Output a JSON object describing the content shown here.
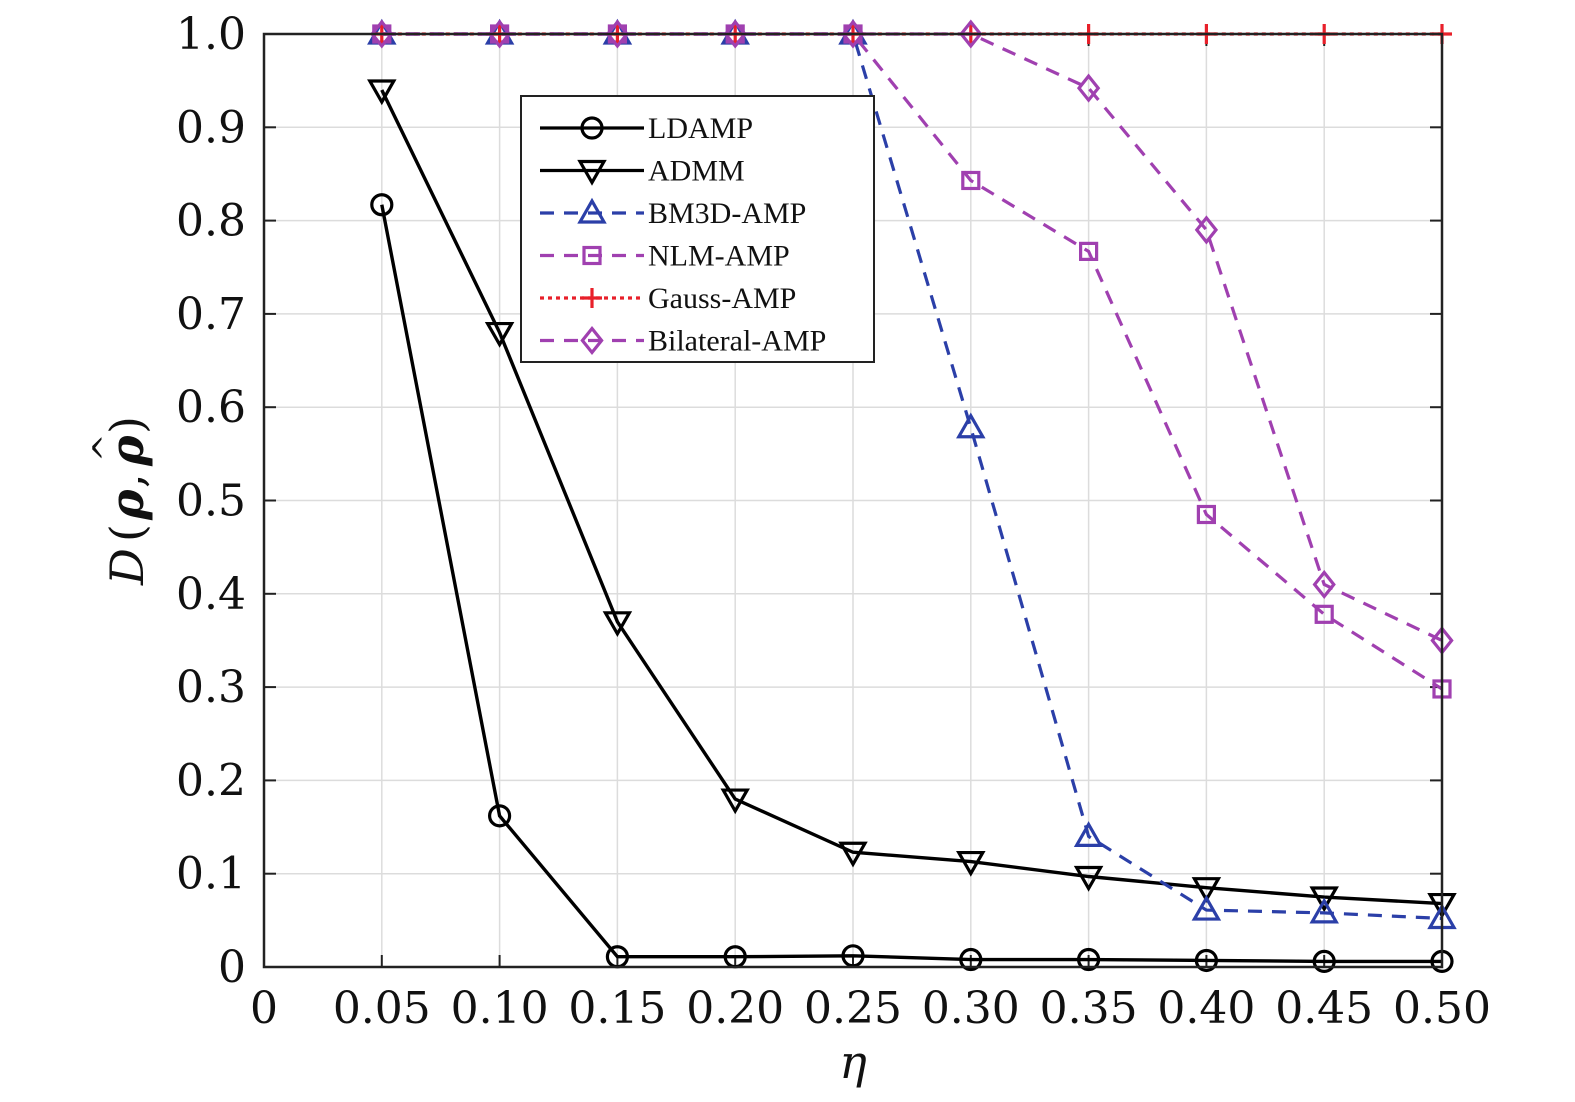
{
  "chart_data": {
    "type": "line",
    "xlabel": "η",
    "ylabel_parts": {
      "D": "D",
      "open": "(",
      "rho": "ρ",
      "comma": ",",
      "rhohat": "ρ",
      "hat": "^",
      "close": ")"
    },
    "x": [
      0.05,
      0.1,
      0.15,
      0.2,
      0.25,
      0.3,
      0.35,
      0.4,
      0.45,
      0.5
    ],
    "xlim": [
      0,
      0.5
    ],
    "ylim": [
      0,
      1.0
    ],
    "xticks": [
      0,
      0.05,
      0.1,
      0.15,
      0.2,
      0.25,
      0.3,
      0.35,
      0.4,
      0.45,
      0.5
    ],
    "xtick_labels": [
      "0",
      "0.05",
      "0.10",
      "0.15",
      "0.20",
      "0.25",
      "0.30",
      "0.35",
      "0.40",
      "0.45",
      "0.50"
    ],
    "yticks": [
      0,
      0.1,
      0.2,
      0.3,
      0.4,
      0.5,
      0.6,
      0.7,
      0.8,
      0.9,
      1.0
    ],
    "ytick_labels": [
      "0",
      "0.1",
      "0.2",
      "0.3",
      "0.4",
      "0.5",
      "0.6",
      "0.7",
      "0.8",
      "0.9",
      "1.0"
    ],
    "grid": true,
    "legend_position": "upper-center",
    "series": [
      {
        "name": "LDAMP",
        "color": "#000000",
        "dash": "solid",
        "marker": "circle",
        "values": [
          0.817,
          0.162,
          0.011,
          0.011,
          0.012,
          0.008,
          0.008,
          0.007,
          0.006,
          0.006
        ]
      },
      {
        "name": "ADMM",
        "color": "#000000",
        "dash": "solid",
        "marker": "triangle-down",
        "values": [
          0.94,
          0.68,
          0.37,
          0.18,
          0.123,
          0.113,
          0.097,
          0.085,
          0.075,
          0.068
        ]
      },
      {
        "name": "BM3D-AMP",
        "color": "#2b3fa8",
        "dash": "dashed",
        "marker": "triangle-up",
        "values": [
          1.0,
          1.0,
          1.0,
          1.0,
          1.0,
          0.578,
          0.14,
          0.061,
          0.058,
          0.052
        ]
      },
      {
        "name": "NLM-AMP",
        "color": "#a040b0",
        "dash": "dashed",
        "marker": "square",
        "values": [
          1.0,
          1.0,
          1.0,
          1.0,
          1.0,
          0.843,
          0.767,
          0.485,
          0.378,
          0.298
        ]
      },
      {
        "name": "Gauss-AMP",
        "color": "#e8202a",
        "dash": "dotted",
        "marker": "plus",
        "values": [
          1.0,
          1.0,
          1.0,
          1.0,
          1.0,
          1.0,
          1.0,
          1.0,
          1.0,
          1.0
        ]
      },
      {
        "name": "Bilateral-AMP",
        "color": "#a040b0",
        "dash": "dashed",
        "marker": "diamond",
        "values": [
          1.0,
          1.0,
          1.0,
          1.0,
          1.0,
          1.0,
          0.942,
          0.79,
          0.41,
          0.35
        ]
      }
    ]
  }
}
